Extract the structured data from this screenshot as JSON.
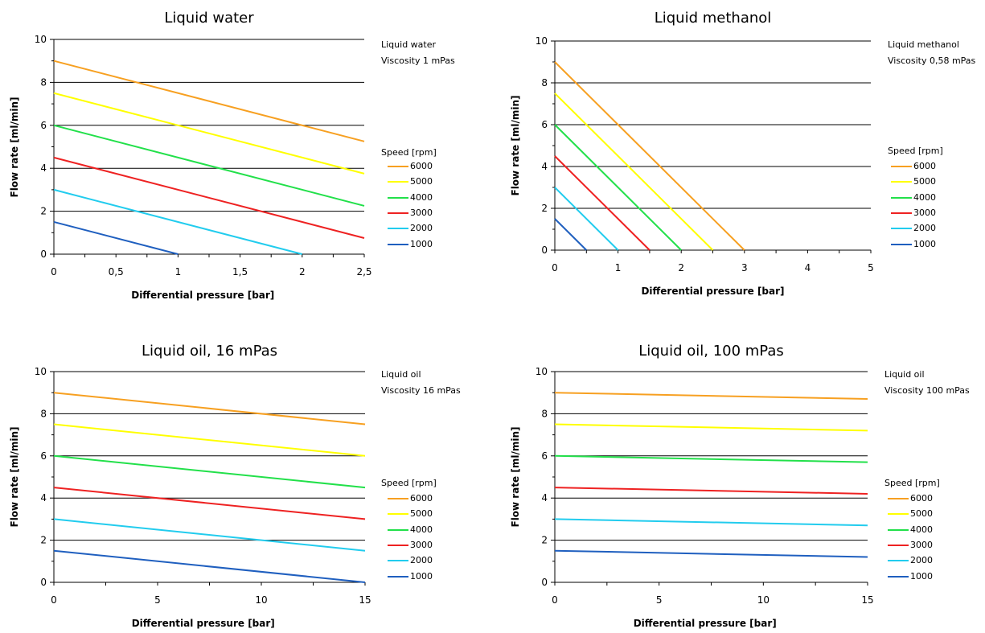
{
  "chart_data": [
    {
      "type": "line",
      "title": "Liquid water",
      "xlabel": "Differential pressure [bar]",
      "ylabel": "Flow rate [ml/min]",
      "xlim": [
        0,
        2.5
      ],
      "ylim": [
        0,
        10
      ],
      "xticks": [
        0,
        0.5,
        1,
        1.5,
        2,
        2.5
      ],
      "xtick_labels": [
        "0",
        "0,5",
        "1",
        "1,5",
        "2",
        "2,5"
      ],
      "yticks": [
        0,
        2,
        4,
        6,
        8,
        10
      ],
      "ytick_labels": [
        "0",
        "2",
        "4",
        "6",
        "8",
        "10"
      ],
      "notes": [
        "Liquid water",
        "Viscosity 1 mPas"
      ],
      "legend_title": "Speed [rpm]",
      "series": [
        {
          "name": "6000",
          "color": "#f7a021",
          "x": [
            0,
            2.5
          ],
          "y": [
            9,
            5.25
          ]
        },
        {
          "name": "5000",
          "color": "#ffff00",
          "x": [
            0,
            2.5
          ],
          "y": [
            7.5,
            3.75
          ]
        },
        {
          "name": "4000",
          "color": "#22e04a",
          "x": [
            0,
            2.5
          ],
          "y": [
            6,
            2.25
          ]
        },
        {
          "name": "3000",
          "color": "#ee2222",
          "x": [
            0,
            2.5
          ],
          "y": [
            4.5,
            0.75
          ]
        },
        {
          "name": "2000",
          "color": "#22ccee",
          "x": [
            0,
            2
          ],
          "y": [
            3,
            0
          ]
        },
        {
          "name": "1000",
          "color": "#1f5fbf",
          "x": [
            0,
            1
          ],
          "y": [
            1.5,
            0
          ]
        }
      ]
    },
    {
      "type": "line",
      "title": "Liquid methanol",
      "xlabel": "Differential pressure [bar]",
      "ylabel": "Flow rate [ml/min]",
      "xlim": [
        0,
        5
      ],
      "ylim": [
        0,
        10
      ],
      "xticks": [
        0,
        1,
        2,
        3,
        4,
        5
      ],
      "xtick_labels": [
        "0",
        "1",
        "2",
        "3",
        "4",
        "5"
      ],
      "yticks": [
        0,
        2,
        4,
        6,
        8,
        10
      ],
      "ytick_labels": [
        "0",
        "2",
        "4",
        "6",
        "8",
        "10"
      ],
      "notes": [
        "Liquid methanol",
        "Viscosity 0,58 mPas"
      ],
      "legend_title": "Speed [rpm]",
      "series": [
        {
          "name": "6000",
          "color": "#f7a021",
          "x": [
            0,
            3
          ],
          "y": [
            9,
            0
          ]
        },
        {
          "name": "5000",
          "color": "#ffff00",
          "x": [
            0,
            2.5
          ],
          "y": [
            7.5,
            0
          ]
        },
        {
          "name": "4000",
          "color": "#22e04a",
          "x": [
            0,
            2
          ],
          "y": [
            6,
            0
          ]
        },
        {
          "name": "3000",
          "color": "#ee2222",
          "x": [
            0,
            1.5
          ],
          "y": [
            4.5,
            0
          ]
        },
        {
          "name": "2000",
          "color": "#22ccee",
          "x": [
            0,
            1
          ],
          "y": [
            3,
            0
          ]
        },
        {
          "name": "1000",
          "color": "#1f5fbf",
          "x": [
            0,
            0.5
          ],
          "y": [
            1.5,
            0
          ]
        }
      ]
    },
    {
      "type": "line",
      "title": "Liquid oil, 16 mPas",
      "xlabel": "Differential pressure [bar]",
      "ylabel": "Flow rate [ml/min]",
      "xlim": [
        0,
        15
      ],
      "ylim": [
        0,
        10
      ],
      "xticks": [
        0,
        5,
        10,
        15
      ],
      "xtick_labels": [
        "0",
        "5",
        "10",
        "15"
      ],
      "yticks": [
        0,
        2,
        4,
        6,
        8,
        10
      ],
      "ytick_labels": [
        "0",
        "2",
        "4",
        "6",
        "8",
        "10"
      ],
      "notes": [
        "Liquid oil",
        "Viscosity 16 mPas"
      ],
      "legend_title": "Speed [rpm]",
      "series": [
        {
          "name": "6000",
          "color": "#f7a021",
          "x": [
            0,
            15
          ],
          "y": [
            9,
            7.5
          ]
        },
        {
          "name": "5000",
          "color": "#ffff00",
          "x": [
            0,
            15
          ],
          "y": [
            7.5,
            6
          ]
        },
        {
          "name": "4000",
          "color": "#22e04a",
          "x": [
            0,
            15
          ],
          "y": [
            6,
            4.5
          ]
        },
        {
          "name": "3000",
          "color": "#ee2222",
          "x": [
            0,
            15
          ],
          "y": [
            4.5,
            3
          ]
        },
        {
          "name": "2000",
          "color": "#22ccee",
          "x": [
            0,
            15
          ],
          "y": [
            3,
            1.5
          ]
        },
        {
          "name": "1000",
          "color": "#1f5fbf",
          "x": [
            0,
            15
          ],
          "y": [
            1.5,
            0
          ]
        }
      ]
    },
    {
      "type": "line",
      "title": "Liquid oil, 100 mPas",
      "xlabel": "Differential pressure [bar]",
      "ylabel": "Flow rate [ml/min]",
      "xlim": [
        0,
        15
      ],
      "ylim": [
        0,
        10
      ],
      "xticks": [
        0,
        5,
        10,
        15
      ],
      "xtick_labels": [
        "0",
        "5",
        "10",
        "15"
      ],
      "yticks": [
        0,
        2,
        4,
        6,
        8,
        10
      ],
      "ytick_labels": [
        "0",
        "2",
        "4",
        "6",
        "8",
        "10"
      ],
      "notes": [
        "Liquid oil",
        "Viscosity 100 mPas"
      ],
      "legend_title": "Speed [rpm]",
      "series": [
        {
          "name": "6000",
          "color": "#f7a021",
          "x": [
            0,
            15
          ],
          "y": [
            9,
            8.7
          ]
        },
        {
          "name": "5000",
          "color": "#ffff00",
          "x": [
            0,
            15
          ],
          "y": [
            7.5,
            7.2
          ]
        },
        {
          "name": "4000",
          "color": "#22e04a",
          "x": [
            0,
            15
          ],
          "y": [
            6,
            5.7
          ]
        },
        {
          "name": "3000",
          "color": "#ee2222",
          "x": [
            0,
            15
          ],
          "y": [
            4.5,
            4.2
          ]
        },
        {
          "name": "2000",
          "color": "#22ccee",
          "x": [
            0,
            15
          ],
          "y": [
            3,
            2.7
          ]
        },
        {
          "name": "1000",
          "color": "#1f5fbf",
          "x": [
            0,
            15
          ],
          "y": [
            1.5,
            1.2
          ]
        }
      ]
    }
  ]
}
